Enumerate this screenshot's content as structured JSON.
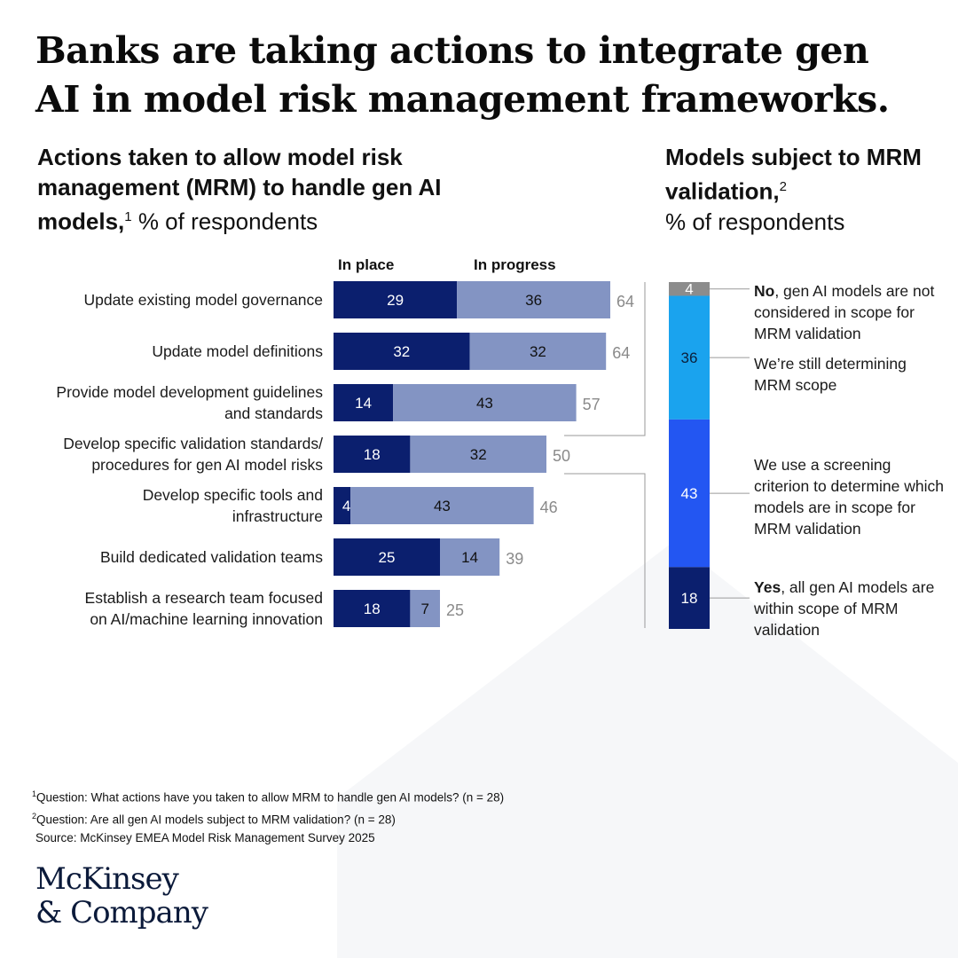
{
  "title": "Banks are taking actions to integrate gen AI in model risk management frameworks.",
  "left": {
    "subtitle_bold": "Actions taken to allow model risk management (MRM) to handle gen AI models,",
    "subtitle_sup": "1",
    "subtitle_unit": " % of respondents",
    "legend_in_place": "In place",
    "legend_in_progress": "In progress"
  },
  "right": {
    "subtitle_bold": "Models subject to MRM validation,",
    "subtitle_sup": "2",
    "subtitle_unit": "% of respondents",
    "notes": [
      {
        "bold": "No",
        "text": ", gen AI models are not considered in scope for MRM validation"
      },
      {
        "bold": "",
        "text": "We’re still determining MRM scope"
      },
      {
        "bold": "",
        "text": "We use a screening criterion to determine which models are in scope for MRM validation"
      },
      {
        "bold": "Yes",
        "text": ", all gen AI models are within scope of MRM validation"
      }
    ]
  },
  "footnotes": {
    "f1_sup": "1",
    "f1": "Question: What actions have you taken to allow MRM to handle gen AI models? (n = 28)",
    "f2_sup": "2",
    "f2": "Question: Are all gen AI models subject to MRM validation? (n = 28)",
    "source": "Source: McKinsey EMEA Model Risk Management Survey 2025"
  },
  "logo": {
    "line1": "McKinsey",
    "line2": "& Company"
  },
  "colors": {
    "in_place": "#0b1f6e",
    "in_progress": "#8394c3",
    "total_text": "#8a8a8a",
    "no": "#8c8c8c",
    "determining": "#1aa3ee",
    "screening": "#2356f2",
    "yes": "#0b1f6e"
  },
  "chart_data": [
    {
      "type": "bar",
      "orientation": "horizontal",
      "stacked": true,
      "categories": [
        "Update existing model governance",
        "Update model definitions",
        "Provide model development guidelines\nand standards",
        "Develop specific validation standards/\nprocedures for gen AI model risks",
        "Develop specific tools and\ninfrastructure",
        "Build dedicated validation teams",
        "Establish a research team focused\non AI/machine learning innovation"
      ],
      "series": [
        {
          "name": "In place",
          "values": [
            29,
            32,
            14,
            18,
            4,
            25,
            18
          ]
        },
        {
          "name": "In progress",
          "values": [
            36,
            32,
            43,
            32,
            43,
            14,
            7
          ]
        }
      ],
      "totals": [
        64,
        64,
        57,
        50,
        46,
        39,
        25
      ]
    },
    {
      "type": "bar",
      "orientation": "vertical",
      "stacked": true,
      "categories": [
        "No, gen AI models are not considered in scope for MRM validation",
        "We’re still determining MRM scope",
        "We use a screening criterion to determine which models are in scope for MRM validation",
        "Yes, all gen AI models are within scope of MRM validation"
      ],
      "values": [
        4,
        36,
        43,
        18
      ]
    }
  ]
}
